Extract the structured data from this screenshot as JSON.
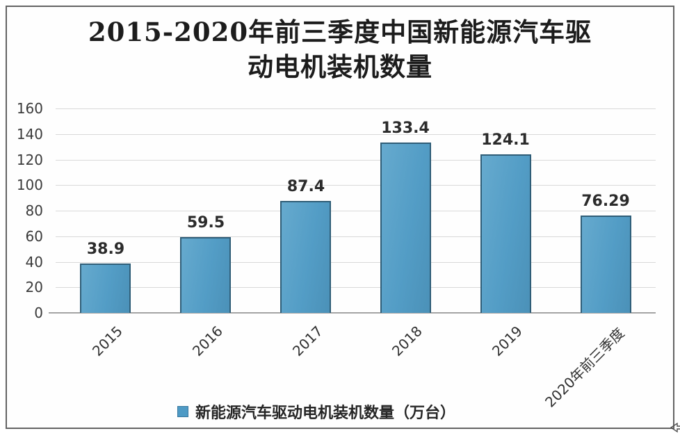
{
  "chart_data": {
    "type": "bar",
    "title": "2015-2020年前三季度中国新能源汽车驱动电机装机数量",
    "title_lines": [
      "2015-2020年前三季度中国新能源汽车驱",
      "动电机装机数量"
    ],
    "categories": [
      "2015",
      "2016",
      "2017",
      "2018",
      "2019",
      "2020年前三季度"
    ],
    "series": [
      {
        "name": "新能源汽车驱动电机装机数量（万台）",
        "values": [
          38.9,
          59.5,
          87.4,
          133.4,
          124.1,
          76.29
        ]
      }
    ],
    "value_labels": [
      "38.9",
      "59.5",
      "87.4",
      "133.4",
      "124.1",
      "76.29"
    ],
    "legend_label": "新能源汽车驱动电机装机数量（万台）",
    "legend_position": "bottom",
    "xlabel": "",
    "ylabel": "",
    "ylim": [
      0,
      160
    ],
    "yticks": [
      0,
      20,
      40,
      60,
      80,
      100,
      120,
      140,
      160
    ],
    "grid": true,
    "colors": {
      "bar_fill": "#539dc6",
      "bar_border": "#2f5d77",
      "gridline": "#d9d9d9",
      "axis_line": "#a3a3a3",
      "title_text": "#1c1c1c",
      "tick_text": "#3a3a3a",
      "frame_border": "#636363",
      "legend_marker": "#4e9ac5"
    }
  }
}
